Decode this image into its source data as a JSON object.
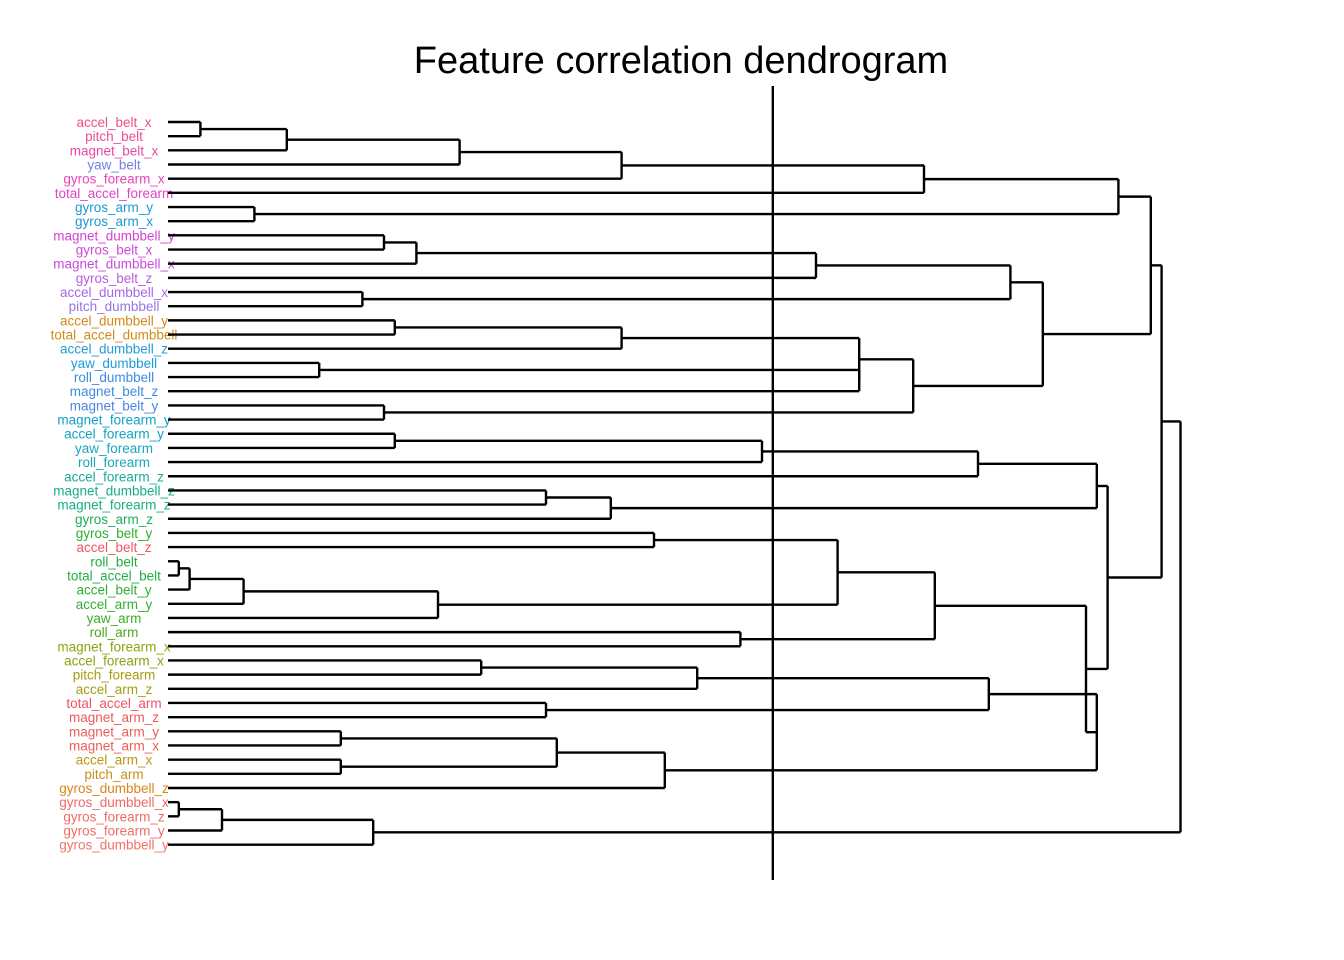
{
  "title": "Feature correlation dendrogram",
  "chart_data": {
    "type": "dendrogram",
    "orientation": "horizontal",
    "cut_height": 0.56,
    "leaves": [
      {
        "label": "accel_belt_x",
        "color": "#EE4E86"
      },
      {
        "label": "pitch_belt",
        "color": "#EC4D92"
      },
      {
        "label": "magnet_belt_x",
        "color": "#E84AA3"
      },
      {
        "label": "yaw_belt",
        "color": "#6E82E0"
      },
      {
        "label": "gyros_forearm_x",
        "color": "#E846B6"
      },
      {
        "label": "total_accel_forearm",
        "color": "#E043C8"
      },
      {
        "label": "gyros_arm_y",
        "color": "#1E97D8"
      },
      {
        "label": "gyros_arm_x",
        "color": "#1E95D6"
      },
      {
        "label": "magnet_dumbbell_y",
        "color": "#D641D6"
      },
      {
        "label": "gyros_belt_x",
        "color": "#CF4AD8"
      },
      {
        "label": "magnet_dumbbell_x",
        "color": "#C94ADC"
      },
      {
        "label": "gyros_belt_z",
        "color": "#B85BE0"
      },
      {
        "label": "accel_dumbbell_x",
        "color": "#A866E4"
      },
      {
        "label": "pitch_dumbbell",
        "color": "#9873E6"
      },
      {
        "label": "accel_dumbbell_y",
        "color": "#D3891A"
      },
      {
        "label": "total_accel_dumbbell",
        "color": "#CF8C16"
      },
      {
        "label": "accel_dumbbell_z",
        "color": "#1E9DD4"
      },
      {
        "label": "yaw_dumbbell",
        "color": "#1E9BD6"
      },
      {
        "label": "roll_dumbbell",
        "color": "#3A8DE0"
      },
      {
        "label": "magnet_belt_z",
        "color": "#3F8AE2"
      },
      {
        "label": "magnet_belt_y",
        "color": "#4A86E4"
      },
      {
        "label": "magnet_forearm_y",
        "color": "#12A3C6"
      },
      {
        "label": "accel_forearm_y",
        "color": "#13A4C2"
      },
      {
        "label": "yaw_forearm",
        "color": "#18A7BC"
      },
      {
        "label": "roll_forearm",
        "color": "#1BA8B6"
      },
      {
        "label": "accel_forearm_z",
        "color": "#18AB9A"
      },
      {
        "label": "magnet_dumbbell_z",
        "color": "#18AC8E"
      },
      {
        "label": "magnet_forearm_z",
        "color": "#19AD84"
      },
      {
        "label": "gyros_arm_z",
        "color": "#1CAE5C"
      },
      {
        "label": "gyros_belt_y",
        "color": "#2CAE2A"
      },
      {
        "label": "accel_belt_z",
        "color": "#EF5560"
      },
      {
        "label": "roll_belt",
        "color": "#25AE3E"
      },
      {
        "label": "total_accel_belt",
        "color": "#22AE48"
      },
      {
        "label": "accel_belt_y",
        "color": "#2EAE34"
      },
      {
        "label": "accel_arm_y",
        "color": "#34AE2E"
      },
      {
        "label": "yaw_arm",
        "color": "#40AC22"
      },
      {
        "label": "roll_arm",
        "color": "#4CA91C"
      },
      {
        "label": "magnet_forearm_x",
        "color": "#8AA512"
      },
      {
        "label": "accel_forearm_x",
        "color": "#8EA212"
      },
      {
        "label": "pitch_forearm",
        "color": "#A39E10"
      },
      {
        "label": "accel_arm_z",
        "color": "#A99C12"
      },
      {
        "label": "total_accel_arm",
        "color": "#EC5468"
      },
      {
        "label": "magnet_arm_z",
        "color": "#EE5A5A"
      },
      {
        "label": "magnet_arm_y",
        "color": "#EE5C58"
      },
      {
        "label": "magnet_arm_x",
        "color": "#EE5E54"
      },
      {
        "label": "accel_arm_x",
        "color": "#BE9412"
      },
      {
        "label": "pitch_arm",
        "color": "#C8901A"
      },
      {
        "label": "gyros_dumbbell_z",
        "color": "#D8871A"
      },
      {
        "label": "gyros_dumbbell_x",
        "color": "#F06868"
      },
      {
        "label": "gyros_forearm_z",
        "color": "#F06B66"
      },
      {
        "label": "gyros_forearm_y",
        "color": "#F06E66"
      },
      {
        "label": "gyros_dumbbell_y",
        "color": "#F07266"
      }
    ],
    "merges": [
      {
        "a": "L0",
        "b": "L1",
        "h": 0.03
      },
      {
        "a": "N0",
        "b": "L2",
        "h": 0.11
      },
      {
        "a": "N1",
        "b": "L3",
        "h": 0.27
      },
      {
        "a": "N2",
        "b": "L4",
        "h": 0.42
      },
      {
        "a": "N3",
        "b": "L5",
        "h": 0.7
      },
      {
        "a": "L6",
        "b": "L7",
        "h": 0.08
      },
      {
        "a": "N4",
        "b": "N5",
        "h": 0.88
      },
      {
        "a": "L8",
        "b": "L9",
        "h": 0.2
      },
      {
        "a": "N7",
        "b": "L10",
        "h": 0.23
      },
      {
        "a": "N8",
        "b": "L11",
        "h": 0.6
      },
      {
        "a": "L12",
        "b": "L13",
        "h": 0.18
      },
      {
        "a": "N9",
        "b": "N10",
        "h": 0.78
      },
      {
        "a": "L14",
        "b": "L15",
        "h": 0.21
      },
      {
        "a": "N12",
        "b": "L16",
        "h": 0.42
      },
      {
        "a": "L17",
        "b": "L18",
        "h": 0.14
      },
      {
        "a": "N14",
        "b": "L19",
        "h": 0.64
      },
      {
        "a": "N13",
        "b": "N15",
        "h": 0.64
      },
      {
        "a": "L20",
        "b": "L21",
        "h": 0.2
      },
      {
        "a": "N16",
        "b": "N17",
        "h": 0.69
      },
      {
        "a": "N11",
        "b": "N18",
        "h": 0.81
      },
      {
        "a": "N6",
        "b": "N19",
        "h": 0.91
      },
      {
        "a": "L22",
        "b": "L23",
        "h": 0.21
      },
      {
        "a": "N21",
        "b": "L24",
        "h": 0.55
      },
      {
        "a": "N22",
        "b": "L25",
        "h": 0.75
      },
      {
        "a": "L26",
        "b": "L27",
        "h": 0.35
      },
      {
        "a": "N24",
        "b": "L28",
        "h": 0.41
      },
      {
        "a": "N23",
        "b": "N25",
        "h": 0.86
      },
      {
        "a": "L29",
        "b": "L30",
        "h": 0.45
      },
      {
        "a": "L31",
        "b": "L32",
        "h": 0.01
      },
      {
        "a": "N28",
        "b": "L33",
        "h": 0.02
      },
      {
        "a": "N29",
        "b": "L34",
        "h": 0.07
      },
      {
        "a": "N30",
        "b": "L35",
        "h": 0.25
      },
      {
        "a": "N27",
        "b": "N31",
        "h": 0.62
      },
      {
        "a": "L36",
        "b": "L37",
        "h": 0.53
      },
      {
        "a": "N32",
        "b": "N33",
        "h": 0.71
      },
      {
        "a": "L38",
        "b": "L39",
        "h": 0.29
      },
      {
        "a": "N35",
        "b": "L40",
        "h": 0.49
      },
      {
        "a": "L41",
        "b": "L42",
        "h": 0.35
      },
      {
        "a": "N36",
        "b": "N37",
        "h": 0.76
      },
      {
        "a": "L43",
        "b": "L44",
        "h": 0.16
      },
      {
        "a": "L45",
        "b": "L46",
        "h": 0.16
      },
      {
        "a": "N39",
        "b": "N40",
        "h": 0.36
      },
      {
        "a": "N41",
        "b": "L47",
        "h": 0.46
      },
      {
        "a": "N38",
        "b": "N42",
        "h": 0.86
      },
      {
        "a": "N34",
        "b": "N43",
        "h": 0.85
      },
      {
        "a": "N26",
        "b": "N44",
        "h": 0.87
      },
      {
        "a": "L48",
        "b": "L49",
        "h": 0.01
      },
      {
        "a": "N46",
        "b": "L50",
        "h": 0.05
      },
      {
        "a": "N47",
        "b": "L51",
        "h": 0.19
      },
      {
        "a": "N48",
        "b": "N42x",
        "h": 0.0
      },
      {
        "a": "N20",
        "b": "N45",
        "h": 0.92
      }
    ]
  }
}
